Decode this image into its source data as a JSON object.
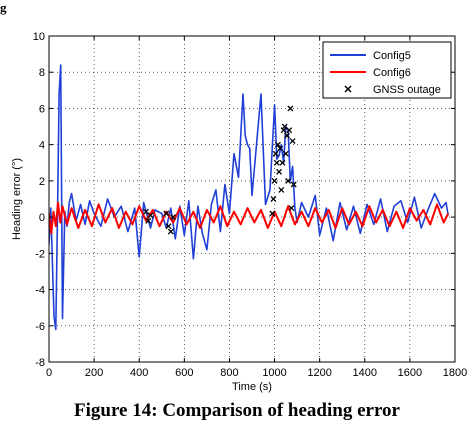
{
  "header_fragment": "g",
  "caption": "Figure 14: Comparison of heading error",
  "colors": {
    "config5": "#1f3fd6",
    "config6": "#ff0000",
    "gnss": "#000000"
  },
  "chart_data": {
    "type": "line",
    "xlabel": "Time (s)",
    "ylabel": "Heading error (°)",
    "xlim": [
      0,
      1800
    ],
    "ylim": [
      -8,
      10
    ],
    "xticks": [
      0,
      200,
      400,
      600,
      800,
      1000,
      1200,
      1400,
      1600,
      1800
    ],
    "yticks": [
      -8,
      -6,
      -4,
      -2,
      0,
      2,
      4,
      6,
      8,
      10
    ],
    "grid": true,
    "legend": "top-right",
    "series": [
      {
        "name": "Config5",
        "color": "#1f3fd6",
        "x": [
          0,
          8,
          15,
          22,
          30,
          38,
          45,
          52,
          60,
          70,
          80,
          90,
          100,
          120,
          140,
          160,
          180,
          200,
          230,
          260,
          290,
          320,
          350,
          380,
          400,
          420,
          450,
          470,
          500,
          520,
          540,
          560,
          580,
          600,
          620,
          640,
          660,
          680,
          700,
          720,
          740,
          760,
          780,
          800,
          820,
          840,
          860,
          870,
          880,
          890,
          900,
          920,
          940,
          960,
          980,
          1000,
          1010,
          1020,
          1030,
          1040,
          1050,
          1060,
          1070,
          1080,
          1090,
          1100,
          1120,
          1150,
          1180,
          1200,
          1230,
          1260,
          1290,
          1320,
          1350,
          1380,
          1410,
          1440,
          1470,
          1500,
          1530,
          1560,
          1590,
          1620,
          1650,
          1680,
          1710,
          1740,
          1760,
          1770
        ],
        "y": [
          -1.5,
          0.5,
          -2.5,
          -5.5,
          -6.2,
          0.5,
          6.8,
          8.4,
          -5.6,
          0.3,
          -0.5,
          0.8,
          1.3,
          -0.2,
          0.7,
          -0.4,
          0.9,
          0.2,
          -0.5,
          1.0,
          0.0,
          0.6,
          -0.8,
          0.5,
          -2.2,
          0.8,
          -0.6,
          0.4,
          0.2,
          -0.6,
          0.5,
          -1.2,
          0.6,
          -1.0,
          0.9,
          -2.3,
          0.6,
          -0.9,
          -1.8,
          0.7,
          1.5,
          -0.8,
          1.8,
          0.2,
          3.5,
          2.2,
          6.8,
          4.5,
          4.0,
          3.8,
          1.2,
          4.0,
          6.8,
          0.7,
          1.5,
          6.2,
          3.2,
          3.4,
          4.0,
          3.0,
          5.0,
          4.8,
          2.0,
          2.8,
          0.5,
          -0.3,
          0.8,
          0.0,
          1.2,
          -1.0,
          0.5,
          -1.3,
          0.8,
          -0.7,
          0.6,
          -0.9,
          0.7,
          -0.4,
          1.0,
          -0.8,
          0.6,
          0.9,
          -0.3,
          1.1,
          -0.6,
          0.4,
          1.3,
          0.5,
          0.8,
          0.1
        ]
      },
      {
        "name": "Config6",
        "color": "#ff0000",
        "x": [
          0,
          10,
          20,
          30,
          40,
          50,
          60,
          80,
          100,
          130,
          160,
          190,
          220,
          250,
          280,
          310,
          340,
          370,
          400,
          430,
          460,
          490,
          520,
          550,
          580,
          610,
          640,
          670,
          700,
          730,
          760,
          790,
          820,
          850,
          880,
          910,
          940,
          970,
          1000,
          1030,
          1060,
          1090,
          1120,
          1150,
          1180,
          1210,
          1240,
          1270,
          1300,
          1330,
          1360,
          1390,
          1420,
          1450,
          1480,
          1510,
          1540,
          1570,
          1600,
          1630,
          1660,
          1690,
          1720,
          1750,
          1770
        ],
        "y": [
          0.2,
          -0.9,
          0.3,
          -0.5,
          0.8,
          -0.3,
          0.6,
          -0.4,
          0.5,
          -0.6,
          0.4,
          -0.5,
          0.7,
          -0.3,
          0.5,
          -0.6,
          0.3,
          -0.4,
          0.6,
          -0.2,
          0.4,
          -0.5,
          0.3,
          -0.3,
          0.5,
          -0.4,
          0.3,
          -0.6,
          0.4,
          -0.3,
          0.6,
          -0.5,
          0.3,
          -0.4,
          0.5,
          -0.3,
          0.4,
          -0.6,
          0.3,
          -0.5,
          0.6,
          -0.4,
          0.3,
          -0.5,
          0.5,
          -0.3,
          0.4,
          -0.6,
          0.5,
          -0.4,
          0.3,
          -0.5,
          0.6,
          -0.3,
          0.4,
          -0.5,
          0.3,
          -0.6,
          0.5,
          -0.2,
          0.4,
          -0.4,
          0.7,
          -0.3,
          0.2
        ]
      },
      {
        "name": "GNSS outage",
        "color": "#000000",
        "marker": "x",
        "x": [
          430,
          440,
          450,
          520,
          530,
          540,
          550,
          990,
          995,
          1000,
          1005,
          1010,
          1015,
          1020,
          1025,
          1030,
          1035,
          1040,
          1045,
          1050,
          1055,
          1060,
          1065,
          1070,
          1075,
          1080,
          1085
        ],
        "y": [
          0.3,
          -0.2,
          0.1,
          0.2,
          -0.5,
          -0.8,
          0.0,
          0.2,
          1.0,
          2.0,
          3.5,
          3.0,
          4.0,
          2.5,
          3.8,
          1.5,
          3.0,
          4.8,
          5.0,
          3.5,
          4.5,
          2.0,
          4.8,
          6.0,
          0.5,
          4.2,
          1.8
        ]
      }
    ]
  }
}
